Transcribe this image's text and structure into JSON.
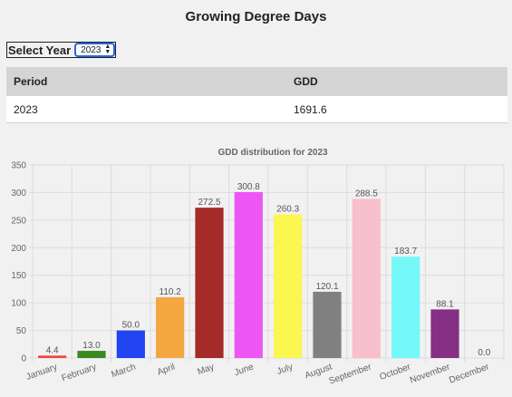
{
  "page": {
    "title": "Growing Degree Days"
  },
  "selector": {
    "label": "Select Year",
    "selected": "2023"
  },
  "table": {
    "headers": [
      "Period",
      "GDD"
    ],
    "rows": [
      {
        "period": "2023",
        "gdd": "1691.6"
      }
    ]
  },
  "chart_data": {
    "type": "bar",
    "title": "GDD distribution for 2023",
    "categories": [
      "January",
      "February",
      "March",
      "April",
      "May",
      "June",
      "July",
      "August",
      "September",
      "October",
      "November",
      "December"
    ],
    "values": [
      4.4,
      13.0,
      50.0,
      110.2,
      272.5,
      300.8,
      260.3,
      120.1,
      288.5,
      183.7,
      88.1,
      0.0
    ],
    "data_labels": [
      "4.4",
      "13.0",
      "50.0",
      "110.2",
      "272.5",
      "300.8",
      "260.3",
      "120.1",
      "288.5",
      "183.7",
      "88.1",
      "0.0"
    ],
    "colors": [
      "#f0463c",
      "#3a8a1e",
      "#2244f0",
      "#f4a640",
      "#a52a2a",
      "#ee55f5",
      "#fbf650",
      "#808080",
      "#f7c0cc",
      "#74f8f8",
      "#852f85",
      "#f8e0c0"
    ],
    "ylim": [
      0,
      350
    ],
    "yticks": [
      "0",
      "50",
      "100",
      "150",
      "200",
      "250",
      "300",
      "350"
    ],
    "grid": true
  }
}
